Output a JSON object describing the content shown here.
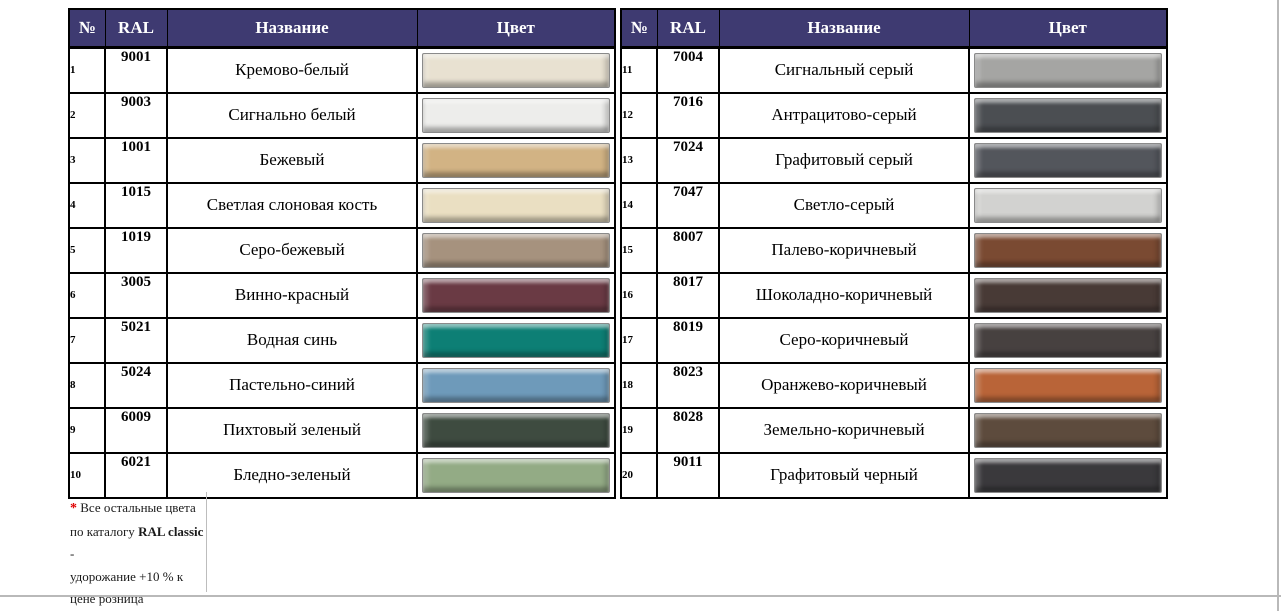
{
  "header": {
    "columns": [
      "№",
      "RAL",
      "Название",
      "Цвет"
    ],
    "bg_color": "#3e3a71",
    "text_color": "#ffffff"
  },
  "tables": [
    {
      "rows": [
        {
          "num": "1",
          "ral": "9001",
          "name": "Кремово-белый",
          "color": "#e8e1d1"
        },
        {
          "num": "2",
          "ral": "9003",
          "name": "Сигнально белый",
          "color": "#ededeb"
        },
        {
          "num": "3",
          "ral": "1001",
          "name": "Бежевый",
          "color": "#d2b384"
        },
        {
          "num": "4",
          "ral": "1015",
          "name": "Светлая слоновая кость",
          "color": "#eadfc2"
        },
        {
          "num": "5",
          "ral": "1019",
          "name": "Серо-бежевый",
          "color": "#a6927e"
        },
        {
          "num": "6",
          "ral": "3005",
          "name": "Винно-красный",
          "color": "#6a3a44"
        },
        {
          "num": "7",
          "ral": "5021",
          "name": "Водная синь",
          "color": "#0d7f75"
        },
        {
          "num": "8",
          "ral": "5024",
          "name": "Пастельно-синий",
          "color": "#6e9aba"
        },
        {
          "num": "9",
          "ral": "6009",
          "name": "Пихтовый зеленый",
          "color": "#3e4b40"
        },
        {
          "num": "10",
          "ral": "6021",
          "name": "Бледно-зеленый",
          "color": "#93ab85"
        }
      ]
    },
    {
      "rows": [
        {
          "num": "11",
          "ral": "7004",
          "name": "Сигнальный серый",
          "color": "#a5a5a3"
        },
        {
          "num": "12",
          "ral": "7016",
          "name": "Антрацитово-серый",
          "color": "#4b4e52"
        },
        {
          "num": "13",
          "ral": "7024",
          "name": "Графитовый серый",
          "color": "#53565c"
        },
        {
          "num": "14",
          "ral": "7047",
          "name": "Светло-серый",
          "color": "#d2d2d0"
        },
        {
          "num": "15",
          "ral": "8007",
          "name": "Палево-коричневый",
          "color": "#7a4a32"
        },
        {
          "num": "16",
          "ral": "8017",
          "name": "Шоколадно-коричневый",
          "color": "#483a36"
        },
        {
          "num": "17",
          "ral": "8019",
          "name": "Серо-коричневый",
          "color": "#474140"
        },
        {
          "num": "18",
          "ral": "8023",
          "name": "Оранжево-коричневый",
          "color": "#b96438"
        },
        {
          "num": "19",
          "ral": "8028",
          "name": "Земельно-коричневый",
          "color": "#5d4b3d"
        },
        {
          "num": "20",
          "ral": "9011",
          "name": "Графитовый черный",
          "color": "#3a393c"
        }
      ]
    }
  ],
  "footnote": {
    "star": "*",
    "star_color": "#e00000",
    "line1": "Все остальные цвета",
    "line2_prefix": "по каталогу ",
    "line2_bold": "RAL classic",
    "line2_suffix": " -",
    "line3": "удорожание +10 % к",
    "line4": "цене розница"
  }
}
